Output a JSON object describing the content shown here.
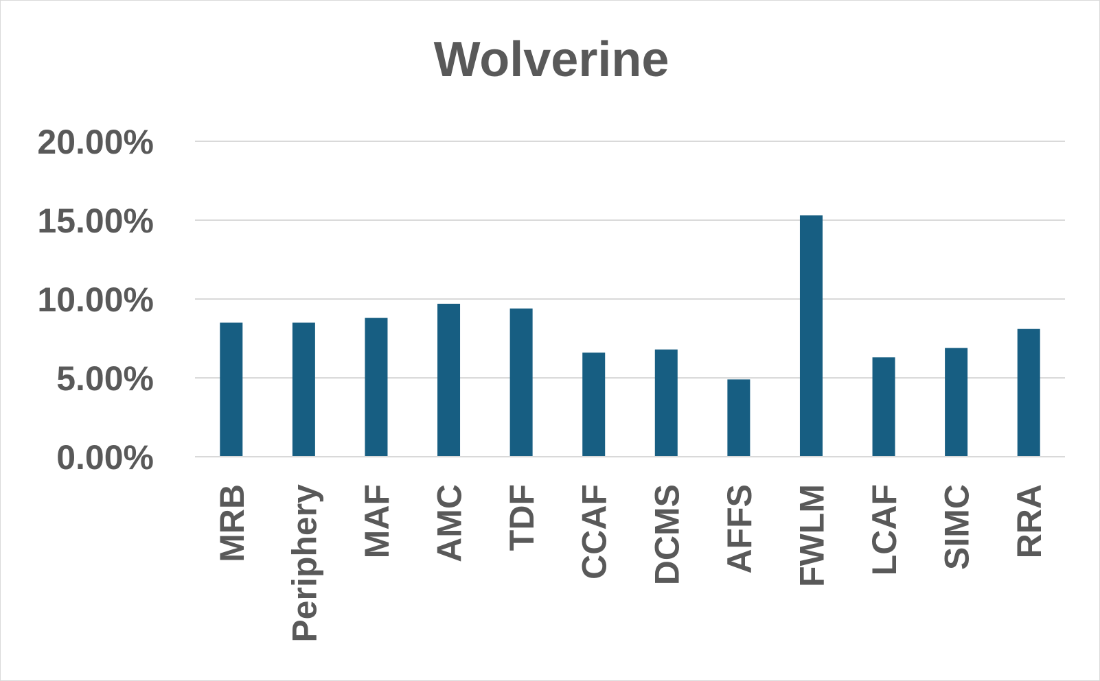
{
  "colors": {
    "bar": "#175e82",
    "text": "#595959",
    "grid": "#d9d9d9"
  },
  "chart_data": {
    "type": "bar",
    "title": "Wolverine",
    "xlabel": "",
    "ylabel": "",
    "categories": [
      "MRB",
      "Periphery",
      "MAF",
      "AMC",
      "TDF",
      "CCAF",
      "DCMS",
      "AFFS",
      "FWLM",
      "LCAF",
      "SIMC",
      "RRA"
    ],
    "values": [
      8.5,
      8.5,
      8.8,
      9.7,
      9.4,
      6.6,
      6.8,
      4.9,
      15.3,
      6.3,
      6.9,
      8.1
    ],
    "y_ticks": [
      "0.00%",
      "5.00%",
      "10.00%",
      "15.00%",
      "20.00%"
    ],
    "ylim": [
      0,
      20
    ],
    "grid": true,
    "legend": "none"
  }
}
